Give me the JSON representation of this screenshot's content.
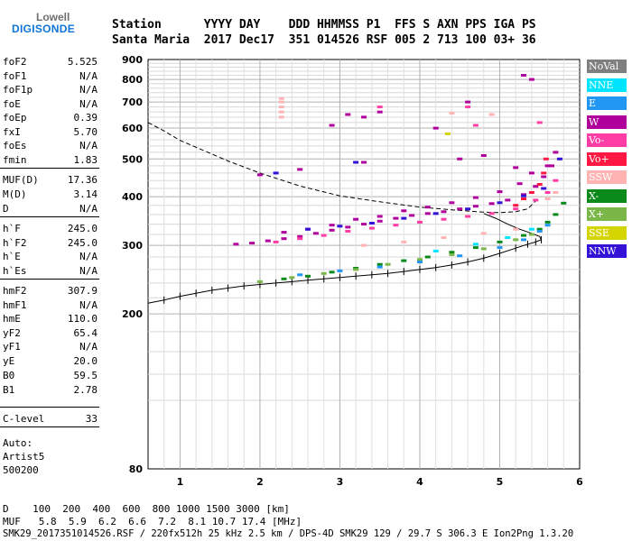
{
  "logo": {
    "line1": "Lowell",
    "line2": "DIGISONDE"
  },
  "header": {
    "row1": "Station      YYYY DAY    DDD HHMMSS P1  FFS S AXN PPS IGA PS",
    "row2": "Santa Maria  2017 Dec17  351 014526 RSF 005 2 713 100 03+ 36"
  },
  "params": [
    {
      "label": "foF2",
      "value": "5.525"
    },
    {
      "label": "foF1",
      "value": "N/A"
    },
    {
      "label": "foF1p",
      "value": "N/A"
    },
    {
      "label": "foE",
      "value": "N/A"
    },
    {
      "label": "foEp",
      "value": "0.39"
    },
    {
      "label": "fxI",
      "value": "5.70"
    },
    {
      "label": "foEs",
      "value": "N/A"
    },
    {
      "label": "fmin",
      "value": "1.83"
    },
    {
      "label": "MUF(D)",
      "value": "17.36"
    },
    {
      "label": "M(D)",
      "value": "3.14"
    },
    {
      "label": "D",
      "value": "N/A"
    },
    {
      "label": "h`F",
      "value": "245.0"
    },
    {
      "label": "h`F2",
      "value": "245.0"
    },
    {
      "label": "h`E",
      "value": "N/A"
    },
    {
      "label": "h`Es",
      "value": "N/A"
    },
    {
      "label": "hmF2",
      "value": "307.9"
    },
    {
      "label": "hmF1",
      "value": "N/A"
    },
    {
      "label": "hmE",
      "value": "110.0"
    },
    {
      "label": "yF2",
      "value": "65.4"
    },
    {
      "label": "yF1",
      "value": "N/A"
    },
    {
      "label": "yE",
      "value": "20.0"
    },
    {
      "label": "B0",
      "value": "59.5"
    },
    {
      "label": "B1",
      "value": "2.78"
    },
    {
      "label": "C-level",
      "value": "33"
    }
  ],
  "auto": {
    "line1": "Auto:",
    "line2": "Artist5",
    "line3": "500200"
  },
  "footer": {
    "d_row": "D    100  200  400  600  800 1000 1500 3000 [km]",
    "muf_row": "MUF   5.8  5.9  6.2  6.6  7.2  8.1 10.7 17.4 [MHz]",
    "file_row": "SMK29_2017351014526.RSF / 220fx512h 25 kHz 2.5 km / DPS-4D SMK29 129 / 29.7 S 306.3 E Ion2Png 1.3.20"
  },
  "legend": [
    {
      "label": "NoVal",
      "color": "#7f7f7f"
    },
    {
      "label": "NNE",
      "color": "#00e5ff"
    },
    {
      "label": "E",
      "color": "#2196f3"
    },
    {
      "label": "W",
      "color": "#b0009c"
    },
    {
      "label": "Vo-",
      "color": "#ff3ea5"
    },
    {
      "label": "Vo+",
      "color": "#ff1744"
    },
    {
      "label": "SSW",
      "color": "#ffb3b3"
    },
    {
      "label": "X-",
      "color": "#0a8a1a"
    },
    {
      "label": "X+",
      "color": "#7ab648"
    },
    {
      "label": "SSE",
      "color": "#d4d400"
    },
    {
      "label": "NNW",
      "color": "#3311d6"
    }
  ],
  "chart_data": {
    "type": "scatter",
    "xlim": [
      0.6,
      6.0
    ],
    "ylim": [
      80,
      900
    ],
    "x_ticks": [
      1,
      2,
      3,
      4,
      5,
      6
    ],
    "y_ticks": [
      80,
      200,
      300,
      400,
      500,
      600,
      700,
      800,
      900
    ],
    "grid": true,
    "y_scale": "log",
    "series": [
      {
        "name": "W",
        "color": "#b0009c",
        "points": [
          [
            1.7,
            302
          ],
          [
            1.9,
            304
          ],
          [
            2.1,
            308
          ],
          [
            2.3,
            312
          ],
          [
            2.5,
            316
          ],
          [
            2.7,
            322
          ],
          [
            2.9,
            328
          ],
          [
            3.1,
            334
          ],
          [
            3.3,
            340
          ],
          [
            3.5,
            346
          ],
          [
            3.7,
            352
          ],
          [
            3.9,
            358
          ],
          [
            4.1,
            362
          ],
          [
            4.3,
            366
          ],
          [
            4.5,
            372
          ],
          [
            4.7,
            378
          ],
          [
            4.9,
            384
          ],
          [
            5.1,
            392
          ],
          [
            5.3,
            405
          ],
          [
            5.45,
            425
          ],
          [
            5.55,
            450
          ],
          [
            5.65,
            480
          ],
          [
            5.7,
            520
          ],
          [
            2.3,
            324
          ],
          [
            2.6,
            330
          ],
          [
            2.9,
            338
          ],
          [
            3.2,
            350
          ],
          [
            3.5,
            356
          ],
          [
            3.8,
            368
          ],
          [
            4.1,
            376
          ],
          [
            4.4,
            386
          ],
          [
            4.7,
            398
          ],
          [
            5.0,
            412
          ],
          [
            5.25,
            432
          ],
          [
            5.4,
            460
          ],
          [
            3.1,
            650
          ],
          [
            3.3,
            640
          ],
          [
            3.5,
            660
          ],
          [
            2.9,
            610
          ],
          [
            4.2,
            600
          ],
          [
            4.6,
            700
          ],
          [
            5.3,
            820
          ],
          [
            5.4,
            800
          ],
          [
            3.3,
            490
          ],
          [
            4.5,
            500
          ],
          [
            4.8,
            510
          ],
          [
            2.5,
            470
          ],
          [
            2.0,
            455
          ],
          [
            5.2,
            475
          ],
          [
            5.6,
            480
          ]
        ]
      },
      {
        "name": "Vo-",
        "color": "#ff3ea5",
        "points": [
          [
            2.2,
            306
          ],
          [
            2.5,
            312
          ],
          [
            2.8,
            318
          ],
          [
            3.1,
            326
          ],
          [
            3.4,
            332
          ],
          [
            3.7,
            338
          ],
          [
            4.0,
            344
          ],
          [
            4.3,
            350
          ],
          [
            4.6,
            356
          ],
          [
            4.9,
            362
          ],
          [
            5.2,
            372
          ],
          [
            5.45,
            392
          ],
          [
            5.6,
            410
          ],
          [
            5.7,
            440
          ],
          [
            4.7,
            610
          ],
          [
            5.5,
            620
          ],
          [
            3.5,
            680
          ],
          [
            4.6,
            680
          ]
        ]
      },
      {
        "name": "SSW",
        "color": "#ffb3b3",
        "points": [
          [
            2.27,
            640
          ],
          [
            2.27,
            660
          ],
          [
            2.27,
            680
          ],
          [
            2.27,
            700
          ],
          [
            2.27,
            715
          ],
          [
            3.3,
            300
          ],
          [
            3.8,
            306
          ],
          [
            4.3,
            314
          ],
          [
            4.8,
            322
          ],
          [
            5.2,
            330
          ],
          [
            4.4,
            655
          ],
          [
            4.9,
            650
          ],
          [
            5.6,
            395
          ],
          [
            5.7,
            410
          ]
        ]
      },
      {
        "name": "NNW",
        "color": "#3311d6",
        "points": [
          [
            2.6,
            330
          ],
          [
            3.0,
            336
          ],
          [
            3.4,
            342
          ],
          [
            3.8,
            352
          ],
          [
            4.2,
            362
          ],
          [
            4.6,
            372
          ],
          [
            5.0,
            386
          ],
          [
            5.3,
            402
          ],
          [
            5.55,
            420
          ],
          [
            5.75,
            500
          ],
          [
            3.2,
            490
          ],
          [
            2.2,
            460
          ]
        ]
      },
      {
        "name": "X-",
        "color": "#0a8a1a",
        "points": [
          [
            2.3,
            246
          ],
          [
            2.6,
            250
          ],
          [
            2.9,
            256
          ],
          [
            3.2,
            262
          ],
          [
            3.5,
            268
          ],
          [
            3.8,
            274
          ],
          [
            4.1,
            280
          ],
          [
            4.4,
            288
          ],
          [
            4.7,
            296
          ],
          [
            5.0,
            306
          ],
          [
            5.3,
            318
          ],
          [
            5.5,
            330
          ],
          [
            5.6,
            344
          ],
          [
            5.7,
            360
          ],
          [
            5.8,
            385
          ]
        ]
      },
      {
        "name": "X+",
        "color": "#7ab648",
        "points": [
          [
            2.0,
            242
          ],
          [
            2.4,
            248
          ],
          [
            2.8,
            254
          ],
          [
            3.2,
            260
          ],
          [
            3.6,
            268
          ],
          [
            4.0,
            276
          ],
          [
            4.4,
            284
          ],
          [
            4.8,
            294
          ],
          [
            5.2,
            310
          ],
          [
            5.4,
            320
          ]
        ]
      },
      {
        "name": "E",
        "color": "#2196f3",
        "points": [
          [
            2.5,
            252
          ],
          [
            3.0,
            258
          ],
          [
            3.5,
            264
          ],
          [
            4.0,
            272
          ],
          [
            4.5,
            282
          ],
          [
            5.0,
            296
          ],
          [
            5.3,
            310
          ],
          [
            5.5,
            326
          ],
          [
            5.6,
            338
          ]
        ]
      },
      {
        "name": "NNE",
        "color": "#00e5ff",
        "points": [
          [
            4.2,
            290
          ],
          [
            4.7,
            302
          ],
          [
            5.1,
            314
          ],
          [
            5.4,
            330
          ]
        ]
      },
      {
        "name": "Vo+",
        "color": "#ff1744",
        "points": [
          [
            5.2,
            380
          ],
          [
            5.3,
            395
          ],
          [
            5.4,
            410
          ],
          [
            5.5,
            430
          ],
          [
            5.55,
            460
          ],
          [
            5.58,
            500
          ]
        ]
      },
      {
        "name": "SSE",
        "color": "#d4d400",
        "points": [
          [
            4.35,
            580
          ]
        ]
      }
    ],
    "profile_true_height": {
      "points": [
        [
          0.6,
          620
        ],
        [
          0.8,
          590
        ],
        [
          1.0,
          558
        ],
        [
          1.3,
          525
        ],
        [
          1.6,
          494
        ],
        [
          2.0,
          460
        ],
        [
          2.5,
          426
        ],
        [
          3.0,
          402
        ],
        [
          3.5,
          388
        ],
        [
          4.0,
          376
        ],
        [
          4.4,
          370
        ],
        [
          4.8,
          365
        ],
        [
          5.0,
          364
        ],
        [
          5.2,
          366
        ],
        [
          5.35,
          372
        ],
        [
          5.45,
          390
        ]
      ]
    },
    "trace_virtual_height": {
      "points": [
        [
          0.6,
          213
        ],
        [
          0.8,
          217
        ],
        [
          1.0,
          222
        ],
        [
          1.2,
          226
        ],
        [
          1.4,
          230
        ],
        [
          1.6,
          233
        ],
        [
          1.8,
          236
        ],
        [
          2.0,
          238
        ],
        [
          2.2,
          240
        ],
        [
          2.4,
          242
        ],
        [
          2.6,
          244
        ],
        [
          2.8,
          246
        ],
        [
          3.0,
          248
        ],
        [
          3.2,
          250
        ],
        [
          3.4,
          252
        ],
        [
          3.6,
          254
        ],
        [
          3.8,
          257
        ],
        [
          4.0,
          260
        ],
        [
          4.2,
          263
        ],
        [
          4.4,
          267
        ],
        [
          4.6,
          272
        ],
        [
          4.8,
          278
        ],
        [
          5.0,
          286
        ],
        [
          5.2,
          295
        ],
        [
          5.35,
          302
        ],
        [
          5.45,
          306
        ],
        [
          5.52,
          310
        ],
        [
          5.5,
          316
        ],
        [
          5.4,
          322
        ],
        [
          5.25,
          330
        ],
        [
          5.1,
          340
        ],
        [
          4.95,
          352
        ],
        [
          4.8,
          362
        ]
      ]
    }
  }
}
